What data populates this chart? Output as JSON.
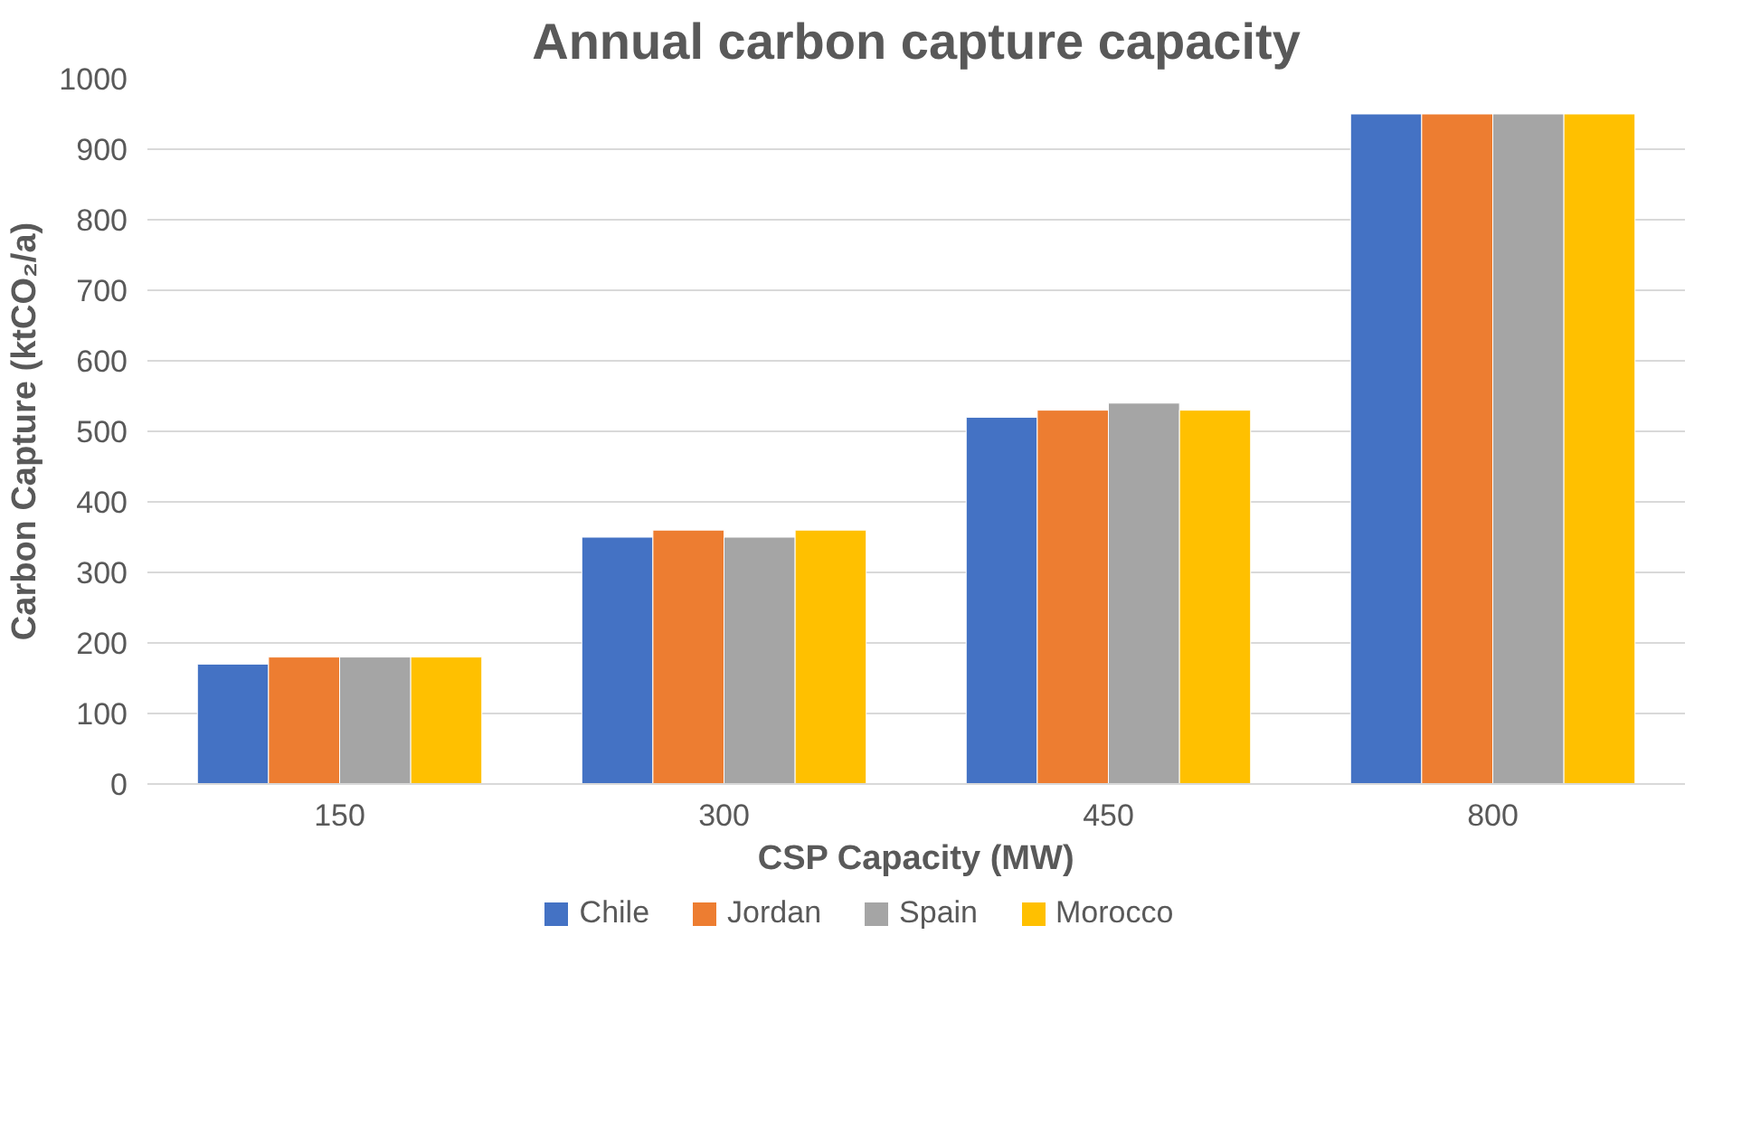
{
  "chart_data": {
    "type": "bar",
    "title": "Annual carbon capture capacity",
    "xlabel": "CSP Capacity (MW)",
    "ylabel": "Carbon Capture (ktCO₂/a)",
    "categories": [
      "150",
      "300",
      "450",
      "800"
    ],
    "series": [
      {
        "name": "Chile",
        "color": "#4472c4",
        "values": [
          170,
          350,
          520,
          950
        ]
      },
      {
        "name": "Jordan",
        "color": "#ed7d31",
        "values": [
          180,
          360,
          530,
          950
        ]
      },
      {
        "name": "Spain",
        "color": "#a5a5a5",
        "values": [
          180,
          350,
          540,
          950
        ]
      },
      {
        "name": "Morocco",
        "color": "#ffc000",
        "values": [
          180,
          360,
          530,
          950
        ]
      }
    ],
    "ylim": [
      0,
      1000
    ],
    "yticks": [
      0,
      100,
      200,
      300,
      400,
      500,
      600,
      700,
      800,
      900,
      1000
    ],
    "grid": "y",
    "legend": "bottom"
  }
}
